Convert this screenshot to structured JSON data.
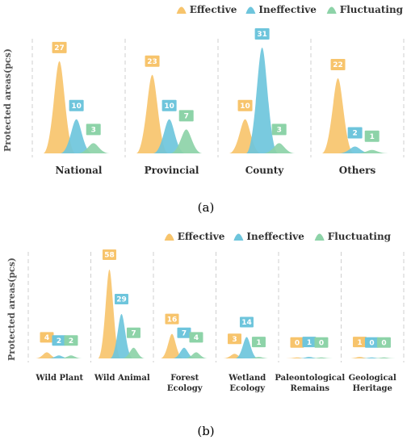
{
  "colors": {
    "effective": "#F7C46C",
    "ineffective": "#6EC5DC",
    "fluctuating": "#8DD3A8"
  },
  "chart_data": [
    {
      "type": "area",
      "panel_label": "(a)",
      "ylabel": "Protected areas(pcs)",
      "ylim": [
        0,
        31
      ],
      "grid": false,
      "legend": "top-right",
      "categories": [
        "National",
        "Provincial",
        "County",
        "Others"
      ],
      "series": [
        {
          "name": "Effective",
          "color_key": "effective",
          "values": [
            27,
            23,
            10,
            22
          ]
        },
        {
          "name": "Ineffective",
          "color_key": "ineffective",
          "values": [
            10,
            10,
            31,
            2
          ]
        },
        {
          "name": "Fluctuating",
          "color_key": "fluctuating",
          "values": [
            3,
            7,
            3,
            1
          ]
        }
      ]
    },
    {
      "type": "area",
      "panel_label": "(b)",
      "ylabel": "Protected areas(pcs)",
      "ylim": [
        0,
        58
      ],
      "grid": false,
      "legend": "top-right",
      "categories": [
        "Wild Plant",
        "Wild Animal",
        "Forest Ecology",
        "Wetland Ecology",
        "Paleontological Remains",
        "Geological Heritage"
      ],
      "series": [
        {
          "name": "Effective",
          "color_key": "effective",
          "values": [
            4,
            58,
            16,
            3,
            0,
            1
          ]
        },
        {
          "name": "Ineffective",
          "color_key": "ineffective",
          "values": [
            2,
            29,
            7,
            14,
            1,
            0
          ]
        },
        {
          "name": "Fluctuating",
          "color_key": "fluctuating",
          "values": [
            2,
            7,
            4,
            1,
            0,
            0
          ]
        }
      ]
    }
  ]
}
